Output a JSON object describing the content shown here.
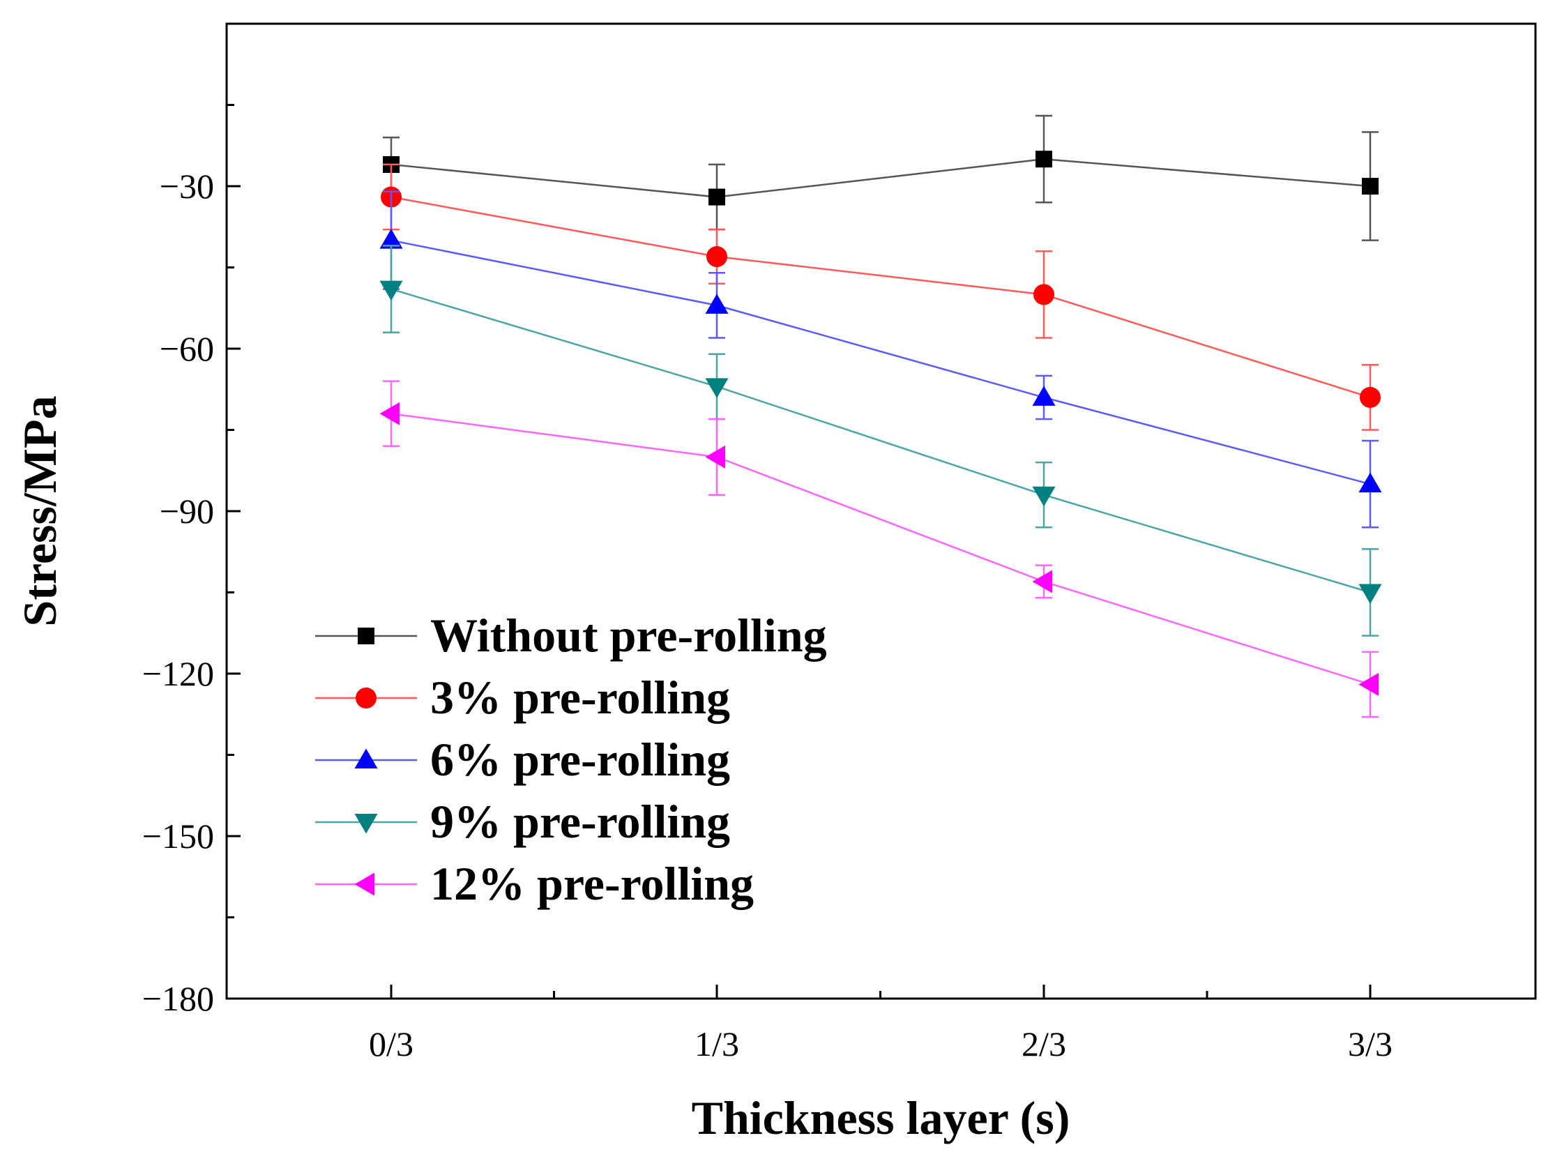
{
  "chart_data": {
    "type": "line",
    "title": "",
    "xlabel": "Thickness layer (s)",
    "ylabel": "Stress/MPa",
    "categories": [
      "0/3",
      "1/3",
      "2/3",
      "3/3"
    ],
    "ylim": [
      -180,
      0
    ],
    "yticks": [
      -30,
      -60,
      -90,
      -120,
      -150,
      -180
    ],
    "yticklabels": [
      "−30",
      "−60",
      "−90",
      "−120",
      "−150",
      "−180"
    ],
    "legend_position": "lower-left",
    "series": [
      {
        "name": "Without pre-rolling",
        "color": "#000000",
        "line_color": "#555555",
        "marker": "square",
        "values": [
          -26,
          -32,
          -25,
          -30
        ],
        "errors": [
          5,
          6,
          8,
          10
        ]
      },
      {
        "name": "3% pre-rolling",
        "color": "#ff0000",
        "line_color": "#ff5a5a",
        "marker": "circle",
        "values": [
          -32,
          -43,
          -50,
          -69
        ],
        "errors": [
          6,
          5,
          8,
          6
        ]
      },
      {
        "name": "6% pre-rolling",
        "color": "#0000ff",
        "line_color": "#5a5aff",
        "marker": "triangle-up",
        "values": [
          -40,
          -52,
          -69,
          -85
        ],
        "errors": [
          9,
          6,
          4,
          8
        ]
      },
      {
        "name": "9% pre-rolling",
        "color": "#008080",
        "line_color": "#4aa6a6",
        "marker": "triangle-down",
        "values": [
          -49,
          -67,
          -87,
          -105
        ],
        "errors": [
          8,
          6,
          6,
          8
        ]
      },
      {
        "name": "12% pre-rolling",
        "color": "#ff00ff",
        "line_color": "#ff66ff",
        "marker": "triangle-left",
        "values": [
          -72,
          -80,
          -103,
          -122
        ],
        "errors": [
          6,
          7,
          3,
          6
        ]
      }
    ]
  }
}
